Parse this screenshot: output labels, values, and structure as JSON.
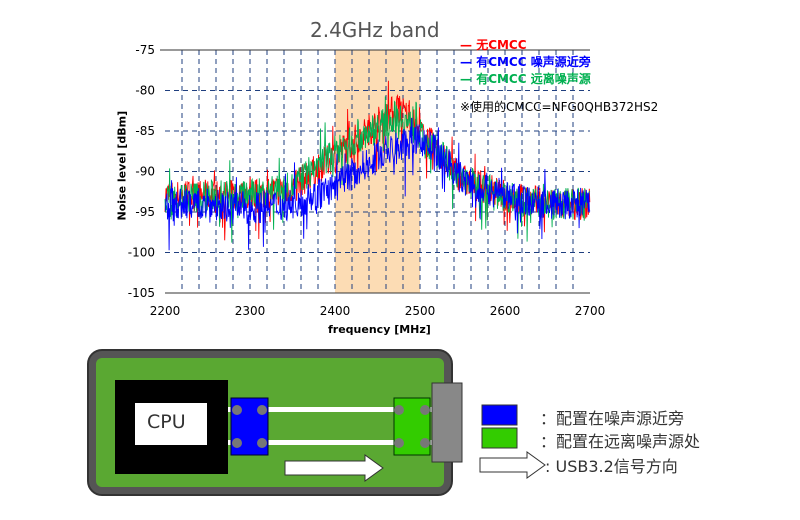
{
  "chart_data": {
    "type": "line",
    "title": "2.4GHz band",
    "xlabel": "frequency [MHz]",
    "ylabel": "Noise level [dBm]",
    "xlim": [
      2200,
      2700
    ],
    "ylim": [
      -105,
      -75
    ],
    "xticks": [
      "2200",
      "2300",
      "2400",
      "2500",
      "2600",
      "2700"
    ],
    "yticks": [
      "-75",
      "-80",
      "-85",
      "-90",
      "-95",
      "-100",
      "-105"
    ],
    "grid": "dashed",
    "highlight_band": [
      2400,
      2500
    ],
    "highlight_color": "#fcdcb4",
    "legend_position": "top-right",
    "note": "※使用的CMCC=NFG0QHB372HS2",
    "series": [
      {
        "name": "无CMCC",
        "color": "#ff0000",
        "x": [
          2200,
          2250,
          2300,
          2350,
          2375,
          2400,
          2425,
          2450,
          2475,
          2500,
          2525,
          2550,
          2600,
          2650,
          2700
        ],
        "y": [
          -93,
          -93,
          -93,
          -92,
          -90,
          -88,
          -86,
          -84,
          -82,
          -85,
          -88,
          -91,
          -93,
          -94,
          -94
        ]
      },
      {
        "name": "有CMCC 远离噪声源",
        "color": "#00b050",
        "x": [
          2200,
          2250,
          2300,
          2350,
          2375,
          2400,
          2425,
          2450,
          2475,
          2500,
          2525,
          2550,
          2600,
          2650,
          2700
        ],
        "y": [
          -93.5,
          -93,
          -93,
          -92,
          -89.5,
          -87.5,
          -86,
          -84.5,
          -83,
          -85.5,
          -88,
          -91,
          -93,
          -94,
          -94
        ]
      },
      {
        "name": "有CMCC 噪声源近旁",
        "color": "#0000ff",
        "x": [
          2200,
          2250,
          2300,
          2350,
          2375,
          2400,
          2425,
          2450,
          2475,
          2500,
          2525,
          2550,
          2600,
          2650,
          2700
        ],
        "y": [
          -94,
          -94,
          -94.5,
          -94,
          -93,
          -92,
          -90,
          -88,
          -87,
          -86,
          -88,
          -91,
          -93,
          -94,
          -94
        ]
      }
    ]
  },
  "legend_order": [
    0,
    2,
    1
  ],
  "diagram": {
    "cpu_label": "CPU",
    "legend": [
      {
        "color": "#0000ff",
        "text": "：配置在噪声源近旁"
      },
      {
        "color": "#33cc00",
        "text": "：配置在远离噪声源处"
      },
      {
        "icon": "arrow-right-outline",
        "text": ": USB3.2信号方向"
      }
    ],
    "colors": {
      "board": "#5aa832",
      "frame": "#555555",
      "connector": "#888888"
    }
  }
}
